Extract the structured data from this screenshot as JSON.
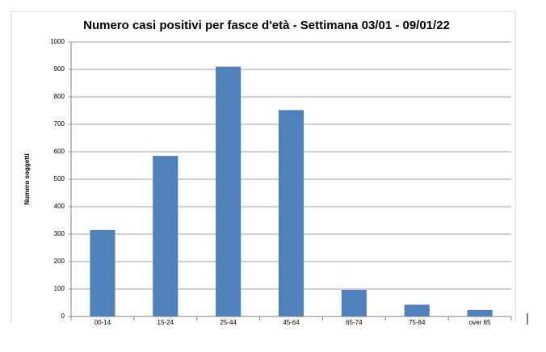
{
  "chart_data": {
    "type": "bar",
    "title": "Numero casi positivi per fasce d'età - Settimana 03/01 - 09/01/22",
    "y_label": "Numero soggetti",
    "categories": [
      "00-14",
      "15-24",
      "25-44",
      "45-64",
      "65-74",
      "75-84",
      "over 85"
    ],
    "values": [
      315,
      585,
      910,
      752,
      97,
      43,
      24
    ],
    "color": "#4f81bd",
    "ylim": [
      0,
      1000
    ],
    "yticks": [
      0,
      100,
      200,
      300,
      400,
      500,
      600,
      700,
      800,
      900,
      1000
    ],
    "grid": true
  }
}
